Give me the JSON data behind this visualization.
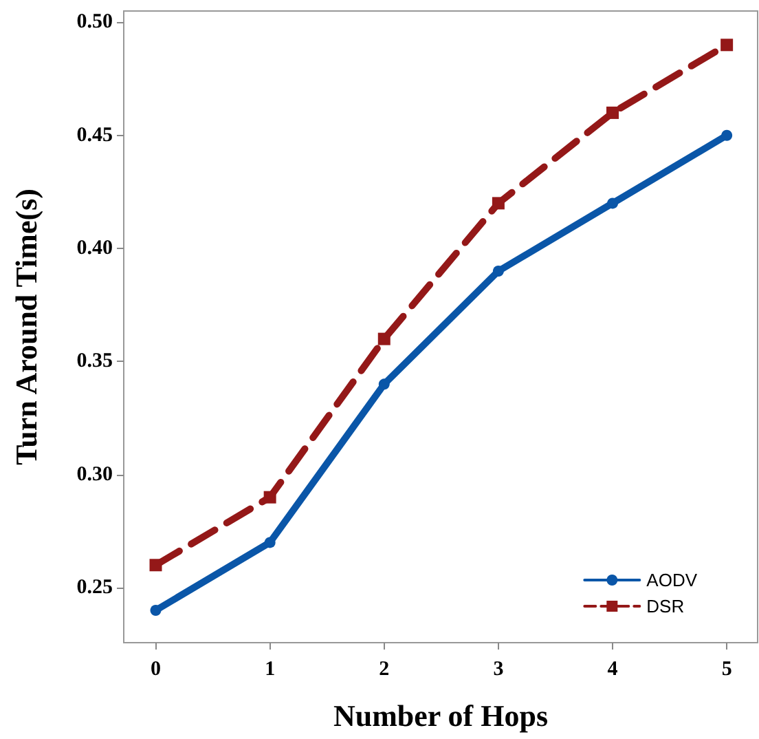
{
  "chart_data": {
    "type": "line",
    "xlabel": "Number of Hops",
    "ylabel": "Turn Around Time(s)",
    "x": [
      0,
      1,
      2,
      3,
      4,
      5
    ],
    "series": [
      {
        "name": "AODV",
        "color": "#0a56a8",
        "marker": "circle",
        "line_style": "solid",
        "values": [
          0.24,
          0.27,
          0.34,
          0.39,
          0.42,
          0.45
        ]
      },
      {
        "name": "DSR",
        "color": "#941818",
        "marker": "square",
        "line_style": "dashed",
        "values": [
          0.26,
          0.29,
          0.36,
          0.42,
          0.46,
          0.49
        ]
      }
    ],
    "xlim": [
      -0.28,
      5.27
    ],
    "xticks": [
      0,
      1,
      2,
      3,
      4,
      5
    ],
    "ylim": [
      0.2257,
      0.505
    ],
    "yticks": [
      0.25,
      {
        "value": 0.3,
        "label": "0.30"
      },
      0.35,
      {
        "value": 0.4,
        "label": "0.40"
      },
      0.45,
      {
        "value": 0.5,
        "label": "0.50"
      }
    ],
    "grid": false,
    "legend": "bottom right"
  }
}
